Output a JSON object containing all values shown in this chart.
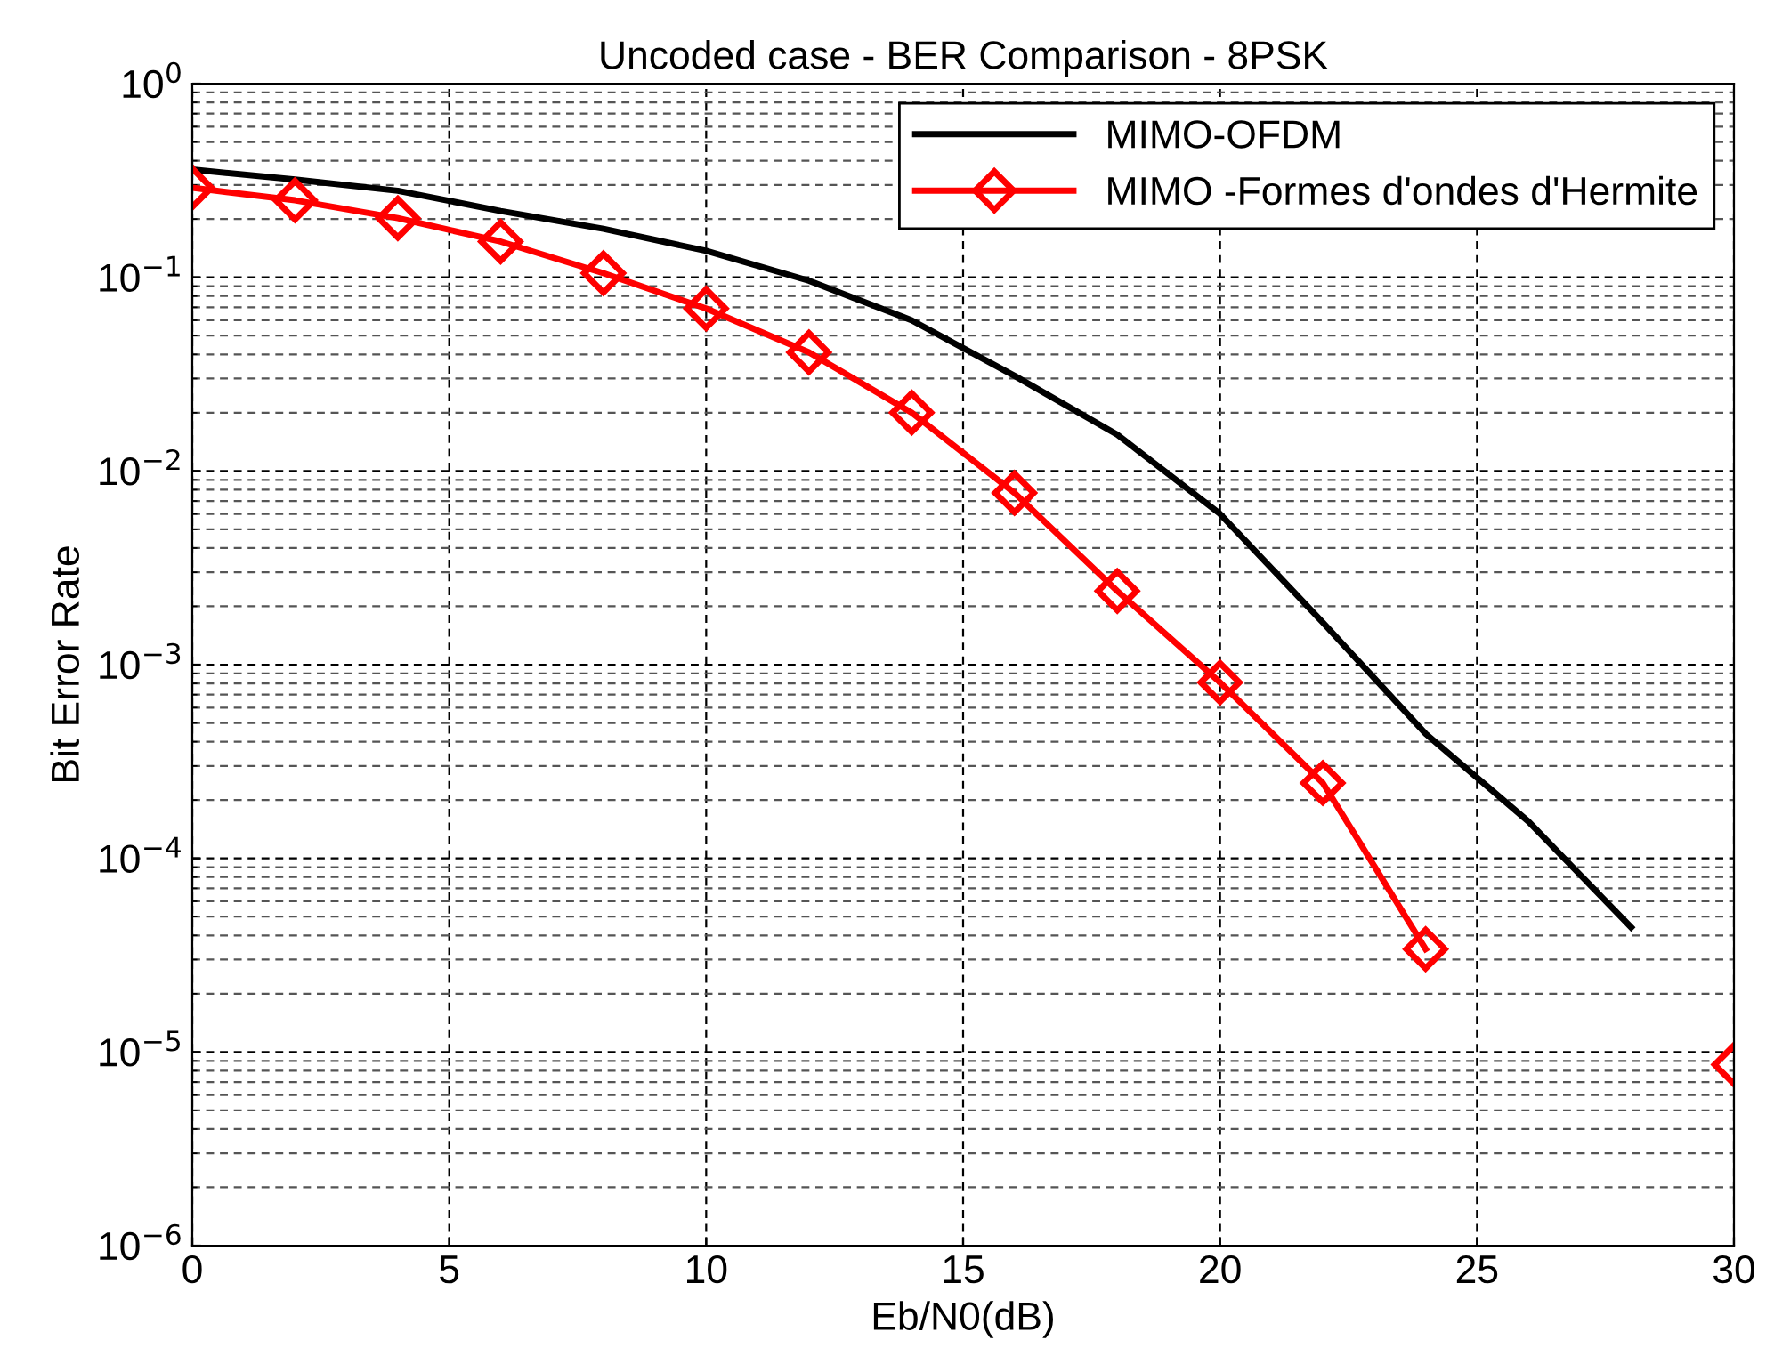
{
  "chart_data": {
    "type": "line",
    "title": "Uncoded case - BER Comparison - 8PSK",
    "xlabel": "Eb/N0(dB)",
    "ylabel": "Bit Error Rate",
    "x": [
      0,
      2,
      4,
      6,
      8,
      10,
      12,
      14,
      16,
      18,
      20,
      22,
      24,
      26,
      28,
      30
    ],
    "series": [
      {
        "name": "MIMO-OFDM",
        "color": "#000000",
        "marker": "none",
        "values": [
          0.36,
          0.32,
          0.28,
          0.22,
          0.178,
          0.137,
          0.096,
          0.06,
          0.031,
          0.0154,
          0.006,
          0.00165,
          0.00044,
          0.000155,
          4.4e-05,
          null
        ]
      },
      {
        "name": "MIMO -Formes d'ondes d'Hermite",
        "color": "#ff0000",
        "marker": "diamond",
        "values": [
          0.29,
          0.25,
          0.202,
          0.153,
          0.105,
          0.069,
          0.041,
          0.02,
          0.0077,
          0.0024,
          0.00081,
          0.000245,
          3.4e-05,
          null,
          null,
          8.6e-06
        ]
      }
    ],
    "log": "y",
    "xlim": [
      0,
      30
    ],
    "xticks": [
      0,
      5,
      10,
      15,
      20,
      25,
      30
    ],
    "ylim": [
      1e-06,
      1
    ],
    "yticks": [
      {
        "value": 1e-06,
        "label": "10$^{−6}$"
      },
      {
        "value": 1e-05,
        "label": "10$^{−5}$"
      },
      {
        "value": 0.0001,
        "label": "10$^{−4}$"
      },
      {
        "value": 0.001,
        "label": "10$^{−3}$"
      },
      {
        "value": 0.01,
        "label": "10$^{−2}$"
      },
      {
        "value": 0.1,
        "label": "10$^{−1}$"
      },
      {
        "value": 1,
        "label": "10$^{0}$"
      }
    ],
    "grid": true,
    "legend": "top right",
    "line_style": "solid"
  }
}
